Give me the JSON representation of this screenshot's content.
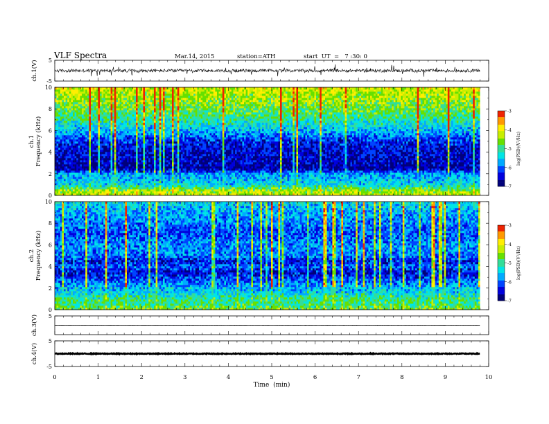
{
  "header": {
    "title": "VLF  Spectra",
    "date": "Mar.14, 2015",
    "station": "station=ATH",
    "start": "start  UT  =   7 :30: 0"
  },
  "colors": {
    "colormap": [
      "#00007a",
      "#0000dd",
      "#0044ff",
      "#00aaff",
      "#00e5e5",
      "#33dd99",
      "#66e000",
      "#c8ee00",
      "#ffee00",
      "#ff9900",
      "#ee2200",
      "#ffe6ee"
    ],
    "trace": "#000000"
  },
  "chart_data": {
    "type": "heatmap",
    "xlabel": "Time  (min)",
    "xlim": [
      0,
      10
    ],
    "x_ticks": [
      "0",
      "1",
      "2",
      "3",
      "4",
      "5",
      "6",
      "7",
      "8",
      "9",
      "10"
    ],
    "data_end_min": 9.8,
    "panels": [
      {
        "kind": "waveform",
        "ylabel": "ch.1(V)",
        "ylim": [
          -5,
          5
        ],
        "y_ticks": [
          "5",
          "-5"
        ],
        "baseline_v": 0,
        "noise_amplitude_v": 1.5
      },
      {
        "kind": "spectrogram",
        "ylabel": "ch.1\nFrequency  (kHz)",
        "ylim": [
          0,
          10
        ],
        "y_ticks": [
          "0",
          "2",
          "4",
          "6",
          "8",
          "10"
        ],
        "colorbar": {
          "label": "log(PSD)(V²/Hz)",
          "ticks": [
            "-3",
            "-4",
            "-5",
            "-6",
            "-7"
          ],
          "range": [
            -7,
            -3
          ]
        },
        "mean_log_psd_profile": [
          {
            "f_khz": 0.0,
            "log_psd": -4.2
          },
          {
            "f_khz": 0.5,
            "log_psd": -4.5
          },
          {
            "f_khz": 1.0,
            "log_psd": -5.4
          },
          {
            "f_khz": 1.5,
            "log_psd": -5.6
          },
          {
            "f_khz": 2.0,
            "log_psd": -5.7
          },
          {
            "f_khz": 2.5,
            "log_psd": -6.8
          },
          {
            "f_khz": 3.0,
            "log_psd": -6.6
          },
          {
            "f_khz": 4.0,
            "log_psd": -6.5
          },
          {
            "f_khz": 5.0,
            "log_psd": -6.3
          },
          {
            "f_khz": 6.0,
            "log_psd": -5.6
          },
          {
            "f_khz": 7.0,
            "log_psd": -5.1
          },
          {
            "f_khz": 8.0,
            "log_psd": -4.7
          },
          {
            "f_khz": 9.0,
            "log_psd": -4.4
          },
          {
            "f_khz": 10.0,
            "log_psd": -4.2
          }
        ]
      },
      {
        "kind": "spectrogram",
        "ylabel": "ch.2\nFrequency  (kHz)",
        "ylim": [
          0,
          10
        ],
        "y_ticks": [
          "0",
          "2",
          "4",
          "6",
          "8",
          "10"
        ],
        "colorbar": {
          "label": "log(PSD)(V²/Hz)",
          "ticks": [
            "-3",
            "-4",
            "-5",
            "-6",
            "-7"
          ],
          "range": [
            -7,
            -3
          ]
        },
        "mean_log_psd_profile": [
          {
            "f_khz": 0.0,
            "log_psd": -4.6
          },
          {
            "f_khz": 0.5,
            "log_psd": -5.0
          },
          {
            "f_khz": 1.0,
            "log_psd": -5.0
          },
          {
            "f_khz": 1.5,
            "log_psd": -5.4
          },
          {
            "f_khz": 2.0,
            "log_psd": -5.6
          },
          {
            "f_khz": 3.0,
            "log_psd": -6.2
          },
          {
            "f_khz": 3.5,
            "log_psd": -6.5
          },
          {
            "f_khz": 4.0,
            "log_psd": -6.0
          },
          {
            "f_khz": 4.5,
            "log_psd": -6.4
          },
          {
            "f_khz": 5.0,
            "log_psd": -5.9
          },
          {
            "f_khz": 6.0,
            "log_psd": -5.8
          },
          {
            "f_khz": 7.0,
            "log_psd": -6.1
          },
          {
            "f_khz": 8.0,
            "log_psd": -5.9
          },
          {
            "f_khz": 9.0,
            "log_psd": -5.7
          },
          {
            "f_khz": 10.0,
            "log_psd": -5.4
          }
        ]
      },
      {
        "kind": "waveform",
        "ylabel": "ch.3(V)",
        "ylim": [
          -5,
          5
        ],
        "y_ticks": [
          "5"
        ],
        "baseline_v": 0,
        "noise_amplitude_v": 0.05
      },
      {
        "kind": "waveform",
        "ylabel": "ch.4(V)",
        "ylim": [
          -5,
          5
        ],
        "y_ticks": [
          "5",
          "-5"
        ],
        "baseline_v": 0,
        "noise_amplitude_v": 0.3
      }
    ]
  }
}
